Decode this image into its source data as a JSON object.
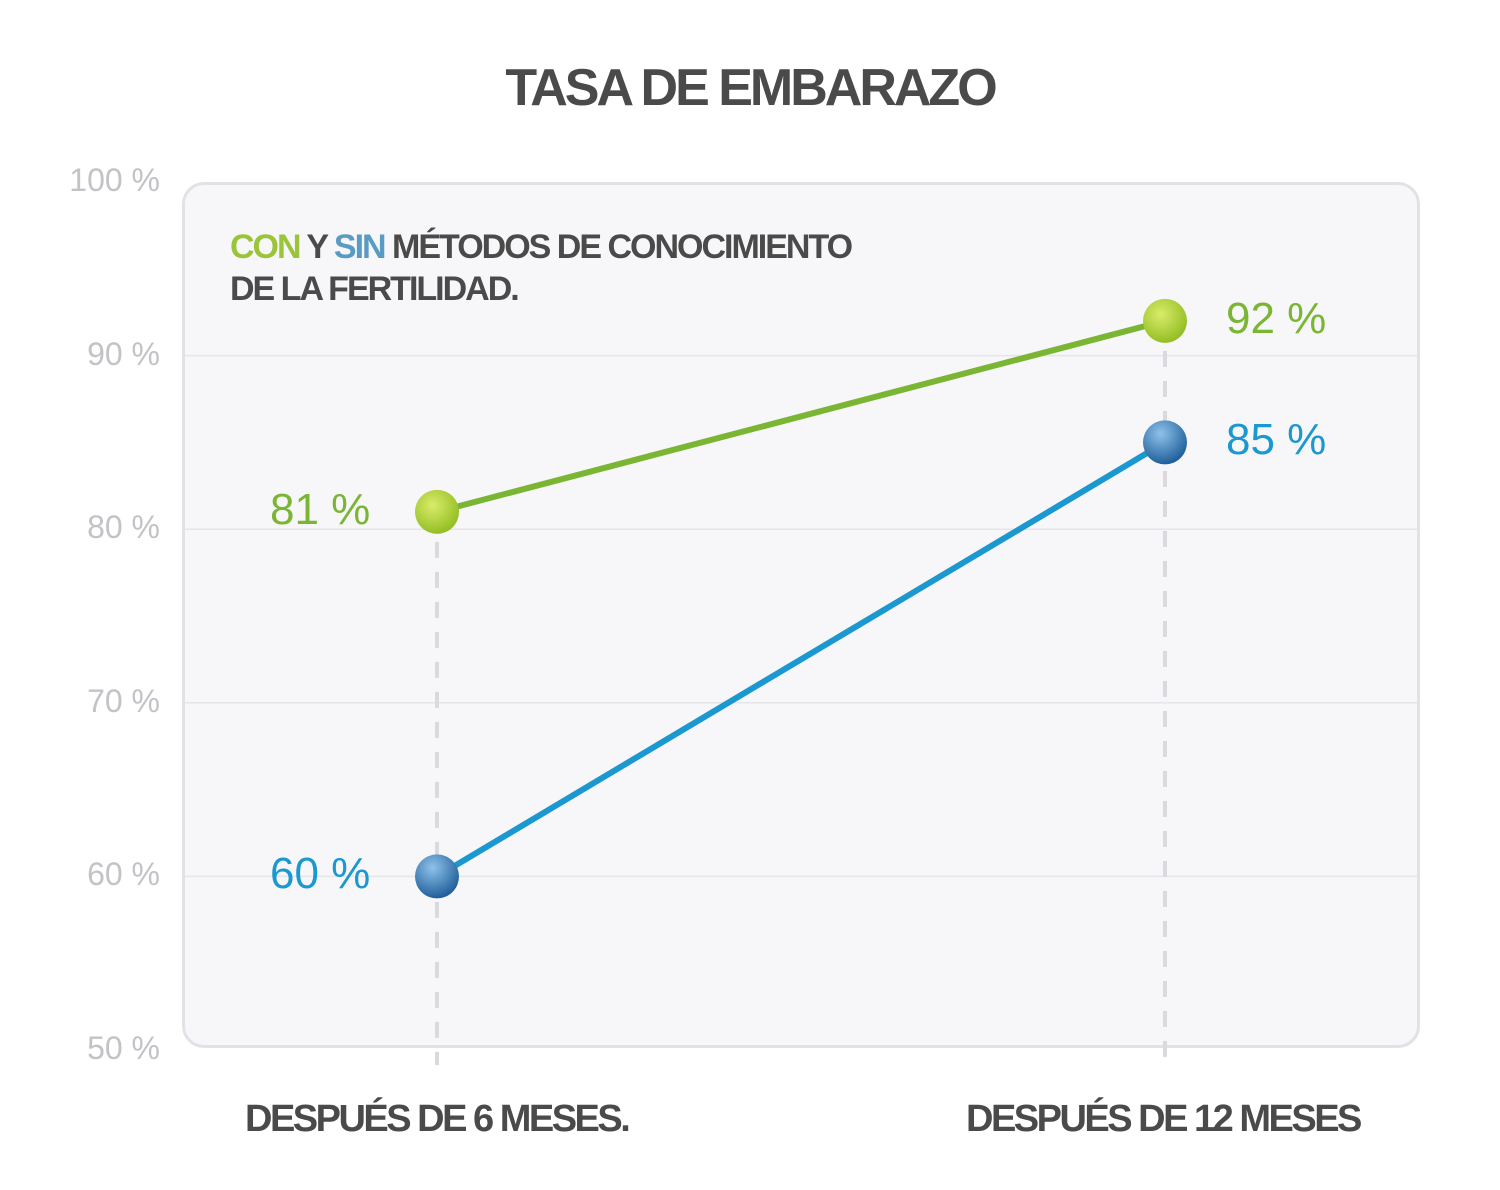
{
  "chart_data": {
    "type": "line",
    "title": "TASA DE EMBARAZO",
    "subtitle": {
      "part1": "CON",
      "part2": " Y ",
      "part3": "SIN",
      "part4": " MÉTODOS DE CONOCIMIENTO",
      "line2": "DE LA FERTILIDAD."
    },
    "categories": [
      "DESPUÉS DE 6 MESES.",
      "DESPUÉS DE 12 MESES"
    ],
    "ylim": [
      50,
      100
    ],
    "yticks": [
      "100 %",
      "90 %",
      "80 %",
      "70 %",
      "60 %",
      "50 %"
    ],
    "grid": true,
    "series": [
      {
        "key": "con",
        "values": [
          81,
          92
        ],
        "labels": [
          "81 %",
          "92 %"
        ],
        "color": "#7ab534",
        "dot": "#b5d430"
      },
      {
        "key": "sin",
        "values": [
          60,
          85
        ],
        "labels": [
          "60 %",
          "85 %"
        ],
        "color": "#1a98cf",
        "dot": "#3f7fb8"
      }
    ]
  }
}
